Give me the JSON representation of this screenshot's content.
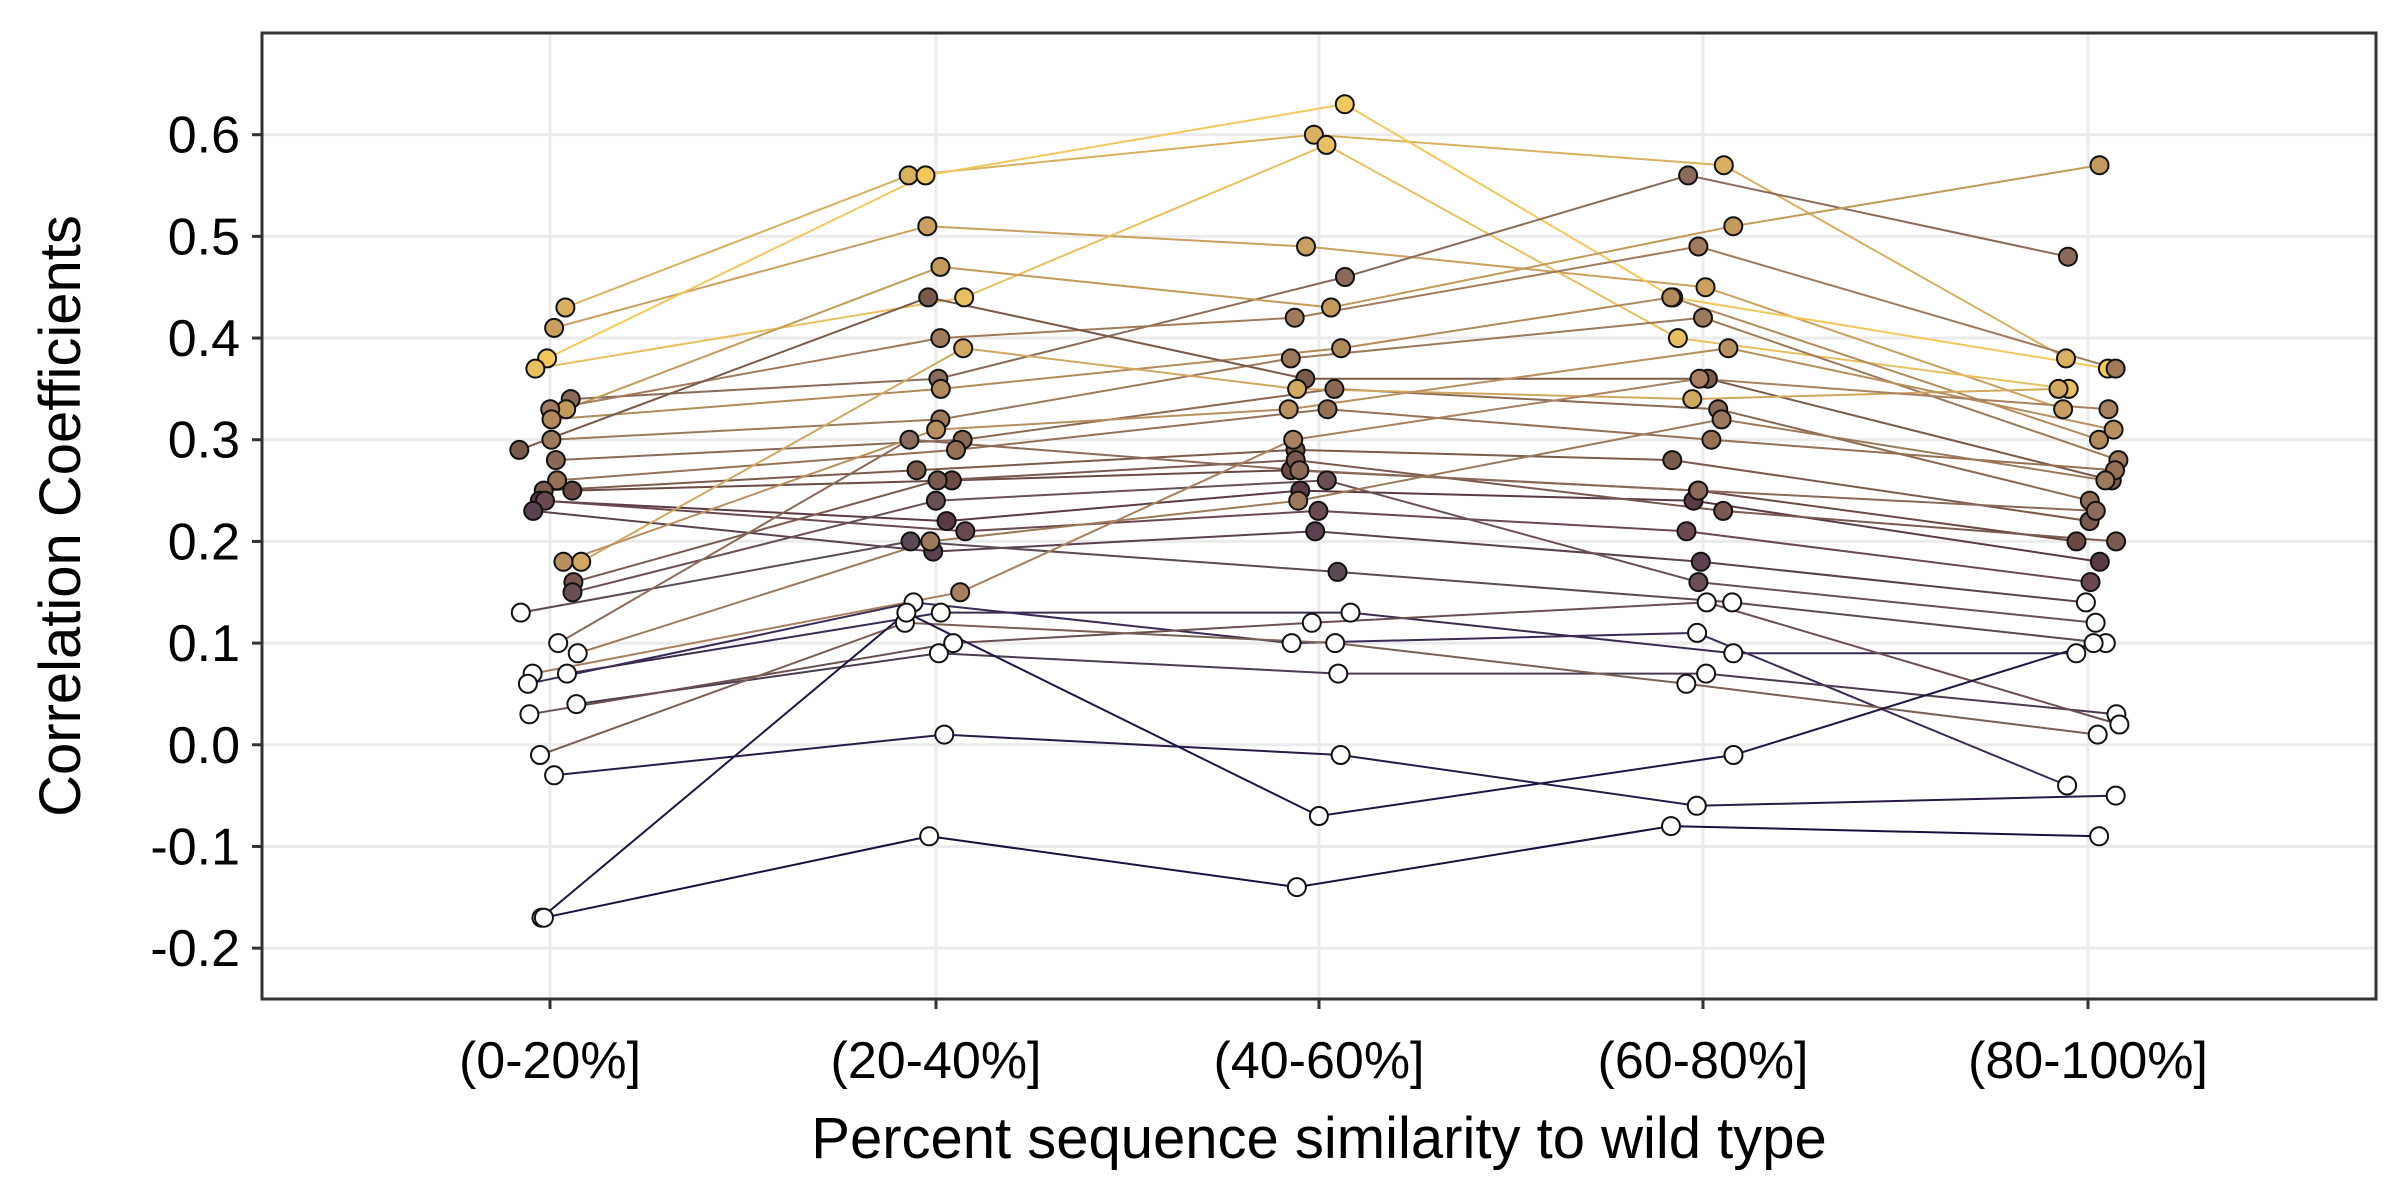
{
  "chart_data": {
    "type": "line",
    "xlabel": "Percent sequence similarity to wild type",
    "ylabel": "Correlation Coefficients",
    "categories": [
      "(0-20%]",
      "(20-40%]",
      "(40-60%]",
      "(60-80%]",
      "(80-100%]"
    ],
    "ylim": [
      -0.25,
      0.7
    ],
    "yticks": [
      -0.2,
      -0.1,
      0.0,
      0.1,
      0.2,
      0.3,
      0.4,
      0.5,
      0.6
    ],
    "ytick_labels": [
      "-0.2",
      "-0.1",
      "0.0",
      "0.1",
      "0.2",
      "0.3",
      "0.4",
      "0.5",
      "0.6"
    ],
    "grid": true,
    "legend": "none",
    "color_scale": [
      "#ffffff",
      "#2a1a4a",
      "#7a5a4a",
      "#b08a5a",
      "#f2c85a"
    ],
    "series": [
      {
        "values": [
          0.43,
          0.56,
          0.6,
          0.57,
          0.38
        ],
        "color": "#d8b060"
      },
      {
        "values": [
          0.41,
          0.51,
          0.49,
          0.45,
          0.33
        ],
        "color": "#caa060"
      },
      {
        "values": [
          0.38,
          0.56,
          0.63,
          0.44,
          0.37
        ],
        "color": "#f2c85a"
      },
      {
        "values": [
          0.37,
          0.44,
          0.59,
          0.4,
          0.35
        ],
        "color": "#e8c060"
      },
      {
        "values": [
          0.34,
          0.36,
          0.46,
          0.56,
          0.48
        ],
        "color": "#8a6a5a"
      },
      {
        "values": [
          0.33,
          0.47,
          0.43,
          0.51,
          0.57
        ],
        "color": "#c29a5a"
      },
      {
        "values": [
          0.33,
          0.4,
          0.42,
          0.49,
          0.37
        ],
        "color": "#a07a5a"
      },
      {
        "values": [
          0.32,
          0.35,
          0.39,
          0.44,
          0.3
        ],
        "color": "#b08a5a"
      },
      {
        "values": [
          0.3,
          0.32,
          0.38,
          0.42,
          0.28
        ],
        "color": "#9a7a5a"
      },
      {
        "values": [
          0.29,
          0.44,
          0.36,
          0.36,
          0.26
        ],
        "color": "#7a5a4a"
      },
      {
        "values": [
          0.28,
          0.3,
          0.35,
          0.33,
          0.24
        ],
        "color": "#8a6a55"
      },
      {
        "values": [
          0.26,
          0.29,
          0.33,
          0.3,
          0.27
        ],
        "color": "#957055"
      },
      {
        "values": [
          0.25,
          0.27,
          0.29,
          0.28,
          0.22
        ],
        "color": "#7a5a4a"
      },
      {
        "values": [
          0.25,
          0.26,
          0.27,
          0.25,
          0.2
        ],
        "color": "#6a4a45"
      },
      {
        "values": [
          0.24,
          0.22,
          0.25,
          0.24,
          0.18
        ],
        "color": "#5a3a45"
      },
      {
        "values": [
          0.24,
          0.21,
          0.23,
          0.21,
          0.16
        ],
        "color": "#6a4a50"
      },
      {
        "values": [
          0.23,
          0.19,
          0.21,
          0.18,
          0.14
        ],
        "color": "#5a4050"
      },
      {
        "values": [
          0.18,
          0.39,
          0.35,
          0.34,
          0.35
        ],
        "color": "#d0a860"
      },
      {
        "values": [
          0.18,
          0.31,
          0.33,
          0.39,
          0.31
        ],
        "color": "#b89060"
      },
      {
        "values": [
          0.16,
          0.26,
          0.28,
          0.23,
          0.2
        ],
        "color": "#7a5a50"
      },
      {
        "values": [
          0.15,
          0.24,
          0.26,
          0.16,
          0.12
        ],
        "color": "#6a5055"
      },
      {
        "values": [
          0.13,
          0.2,
          0.17,
          0.14,
          0.1
        ],
        "color": "#5a4a55"
      },
      {
        "values": [
          0.1,
          0.3,
          0.27,
          0.25,
          0.23
        ],
        "color": "#8a6a5a"
      },
      {
        "values": [
          0.09,
          0.2,
          0.24,
          0.32,
          0.26
        ],
        "color": "#9a7a5a"
      },
      {
        "values": [
          0.07,
          0.15,
          0.3,
          0.36,
          0.33
        ],
        "color": "#a88060"
      },
      {
        "values": [
          0.07,
          0.13,
          0.13,
          0.09,
          0.09
        ],
        "color": "#3a2a50"
      },
      {
        "values": [
          0.06,
          0.14,
          0.1,
          0.11,
          -0.04
        ],
        "color": "#3a2a55"
      },
      {
        "values": [
          0.04,
          0.09,
          0.07,
          0.07,
          0.03
        ],
        "color": "#4a3a50"
      },
      {
        "values": [
          0.03,
          0.1,
          0.12,
          0.14,
          0.02
        ],
        "color": "#6a5050"
      },
      {
        "values": [
          -0.01,
          0.12,
          0.1,
          0.06,
          0.01
        ],
        "color": "#7a6055"
      },
      {
        "values": [
          -0.03,
          0.01,
          -0.01,
          -0.06,
          -0.05
        ],
        "color": "#2a1a4a"
      },
      {
        "values": [
          -0.17,
          0.13,
          -0.07,
          -0.01,
          0.1
        ],
        "color": "#1f1545"
      },
      {
        "values": [
          -0.17,
          -0.09,
          -0.14,
          -0.08,
          -0.09
        ],
        "color": "#1a1040"
      }
    ]
  }
}
